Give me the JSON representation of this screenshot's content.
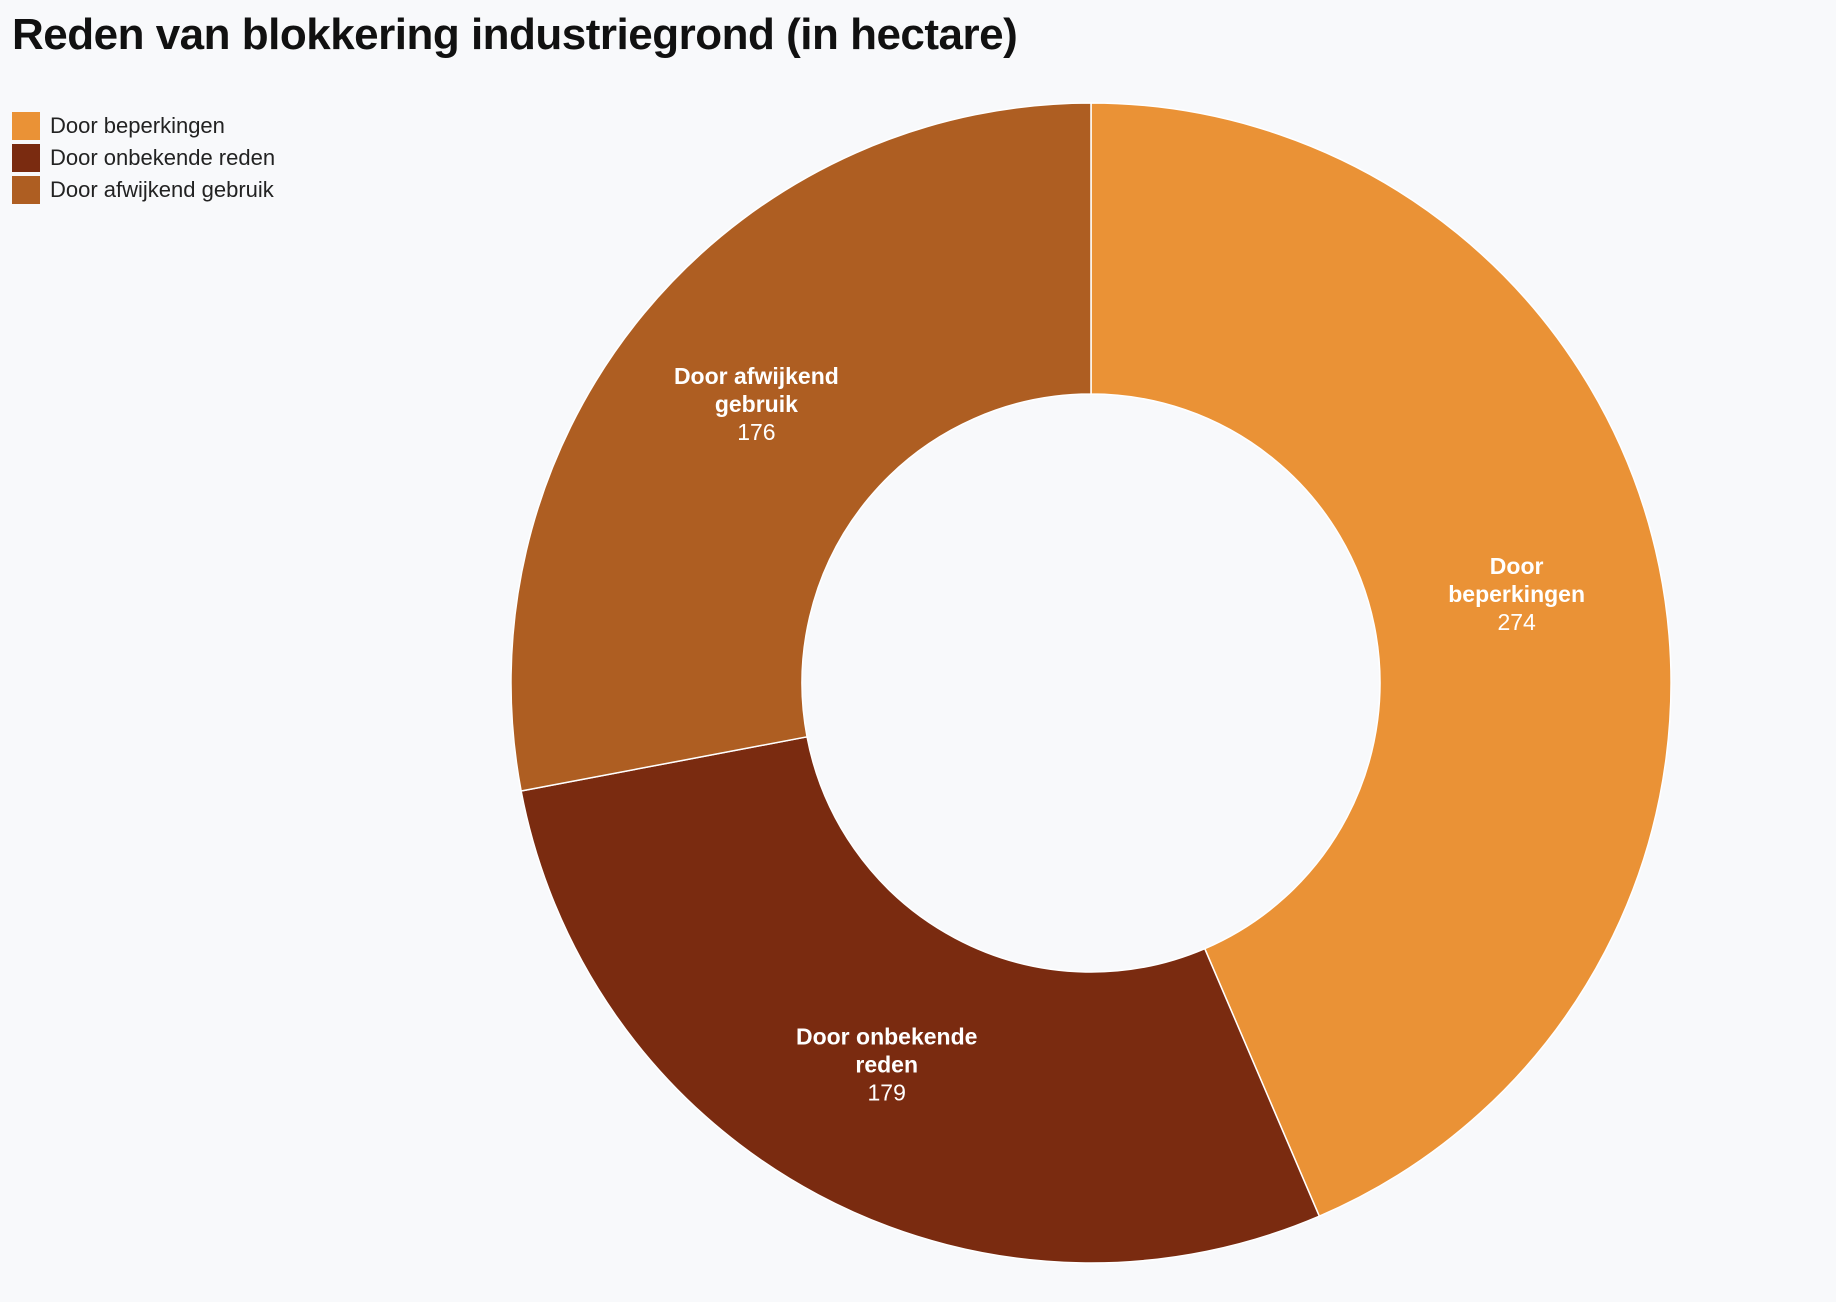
{
  "chart_data": {
    "type": "pie",
    "title": "Reden van blokkering industriegrond (in hectare)",
    "donut": true,
    "legend_position": "top-left",
    "slices": [
      {
        "name": "Door beperkingen",
        "label_lines": [
          "Door",
          "beperkingen"
        ],
        "value": 274,
        "color": "#ea9236"
      },
      {
        "name": "Door onbekende reden",
        "label_lines": [
          "Door onbekende",
          "reden"
        ],
        "value": 179,
        "color": "#7a2b10"
      },
      {
        "name": "Door afwijkend gebruik",
        "label_lines": [
          "Door afwijkend",
          "gebruik"
        ],
        "value": 176,
        "color": "#ae5e22"
      }
    ]
  }
}
